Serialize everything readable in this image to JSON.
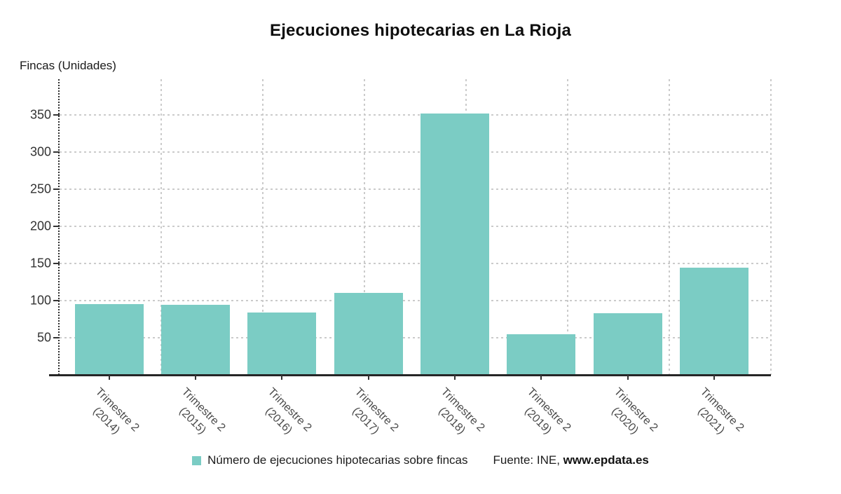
{
  "title": "Ejecuciones hipotecarias en La Rioja",
  "y_axis_title": "Fincas (Unidades)",
  "legend": {
    "series_label": "Número de ejecuciones hipotecarias sobre fincas",
    "source_prefix": "Fuente: INE,",
    "source_site": "www.epdata.es"
  },
  "colors": {
    "bar": "#7bccc4",
    "grid": "#cbcbcb",
    "axis": "#262626"
  },
  "chart_data": {
    "type": "bar",
    "title": "Ejecuciones hipotecarias en La Rioja",
    "ylabel": "Fincas (Unidades)",
    "xlabel": "",
    "categories": [
      "Trimestre 2 (2014)",
      "Trimestre 2 (2015)",
      "Trimestre 2 (2016)",
      "Trimestre 2 (2017)",
      "Trimestre 2 (2018)",
      "Trimestre 2 (2019)",
      "Trimestre 2 (2020)",
      "Trimestre 2 (2021)"
    ],
    "series": [
      {
        "name": "Número de ejecuciones hipotecarias sobre fincas",
        "values": [
          95,
          94,
          84,
          110,
          352,
          55,
          83,
          144
        ]
      }
    ],
    "yticks": [
      50,
      100,
      150,
      200,
      250,
      300,
      350
    ],
    "ylim": [
      0,
      398
    ],
    "grid": true,
    "grid_style": "dashed",
    "vertical_gridline_count": 7,
    "bar_color": "#7bccc4",
    "legend_position": "bottom",
    "source": "Fuente: INE, www.epdata.es"
  }
}
